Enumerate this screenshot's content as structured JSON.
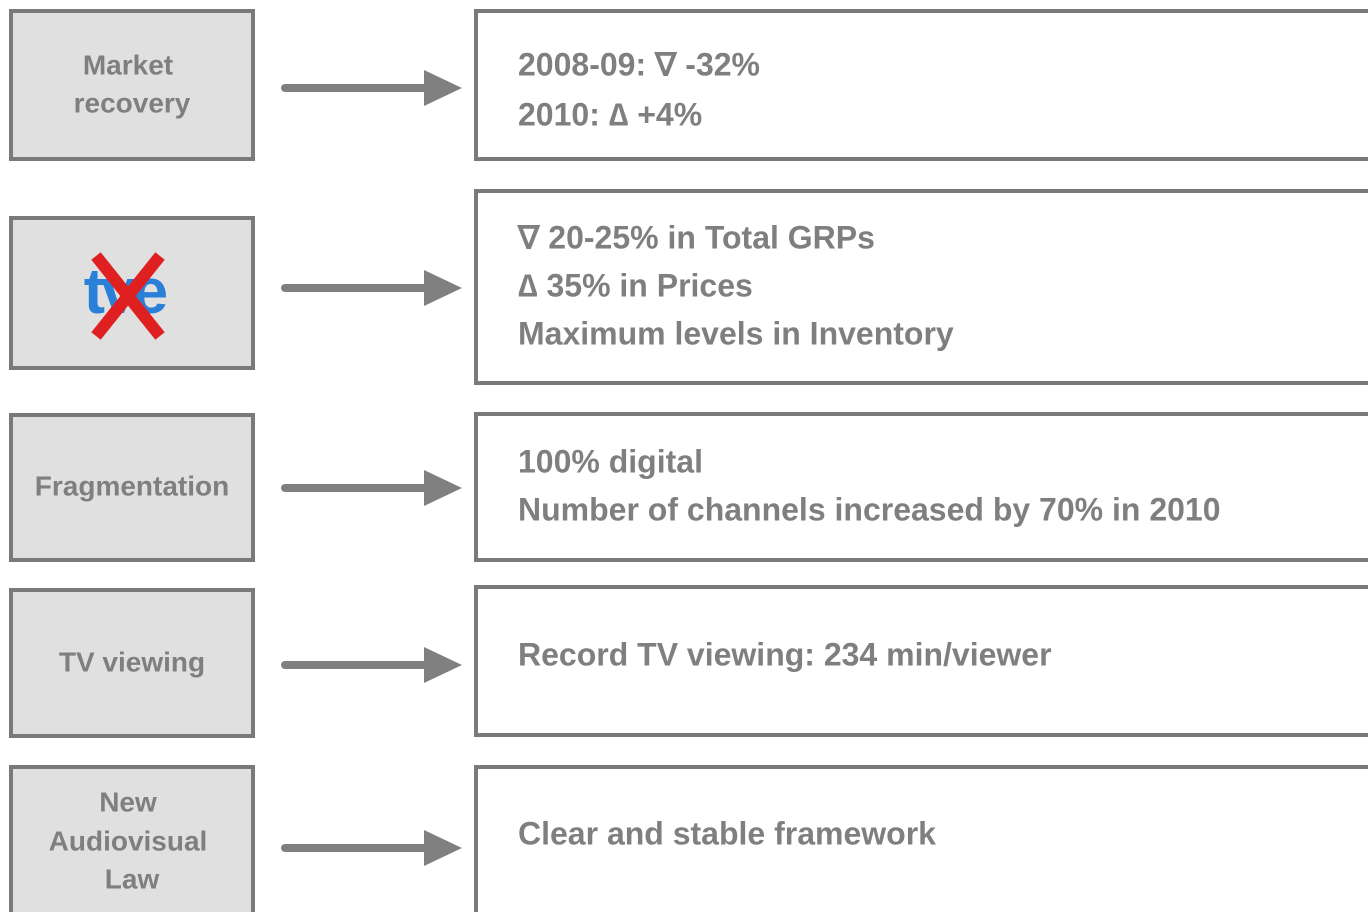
{
  "rows": [
    {
      "label_lines": [
        "Market",
        "recovery"
      ],
      "lines": [
        "2008-09: ∇ -32%",
        "2010: ∆ +4%"
      ]
    },
    {
      "logo": "tve",
      "lines": [
        "∇ 20-25% in Total GRPs",
        "∆ 35% in Prices",
        "Maximum levels in Inventory"
      ]
    },
    {
      "label_lines": [
        "Fragmentation"
      ],
      "lines": [
        "100% digital",
        "Number of channels increased by 70% in 2010"
      ]
    },
    {
      "label_lines": [
        "TV viewing"
      ],
      "lines": [
        "Record TV viewing: 234 min/viewer"
      ]
    },
    {
      "label_lines": [
        "New",
        "Audiovisual",
        "Law"
      ],
      "lines": [
        "Clear and stable framework"
      ]
    }
  ]
}
